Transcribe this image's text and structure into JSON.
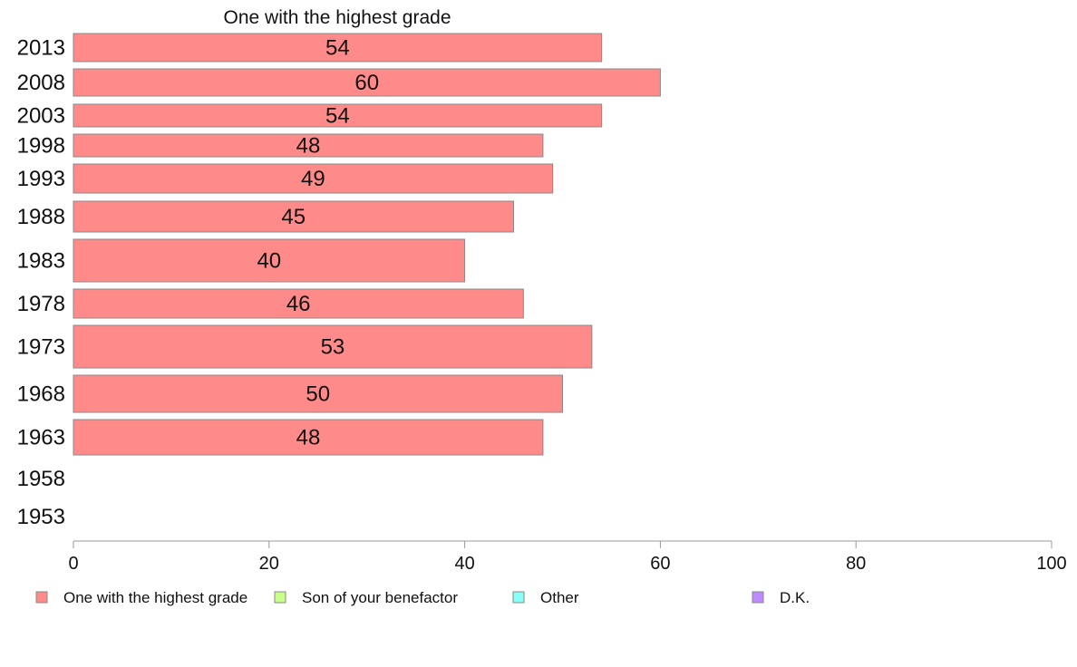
{
  "chart_data": {
    "type": "bar",
    "orientation": "horizontal",
    "stacked": true,
    "title": "One with the highest grade",
    "categories": [
      "2013",
      "2008",
      "2003",
      "1998",
      "1993",
      "1988",
      "1983",
      "1978",
      "1973",
      "1968",
      "1963",
      "1958",
      "1953"
    ],
    "series": [
      {
        "name": "One with the highest grade",
        "color": "#FF8A8A",
        "values": [
          54,
          60,
          54,
          48,
          49,
          45,
          40,
          46,
          53,
          50,
          48,
          null,
          null
        ],
        "labels": [
          "54",
          "60",
          "54",
          "48",
          "49",
          "45",
          "40",
          "46",
          "53",
          "50",
          "48",
          "",
          ""
        ]
      },
      {
        "name": "Son of your benefactor",
        "color": "#C8FF8A",
        "values": [
          null,
          null,
          null,
          null,
          null,
          null,
          null,
          null,
          null,
          null,
          null,
          null,
          null
        ]
      },
      {
        "name": "Other",
        "color": "#8AFFF8",
        "values": [
          null,
          null,
          null,
          null,
          null,
          null,
          null,
          null,
          null,
          null,
          null,
          null,
          null
        ]
      },
      {
        "name": "D.K.",
        "color": "#C08AFF",
        "values": [
          null,
          null,
          null,
          null,
          null,
          null,
          null,
          null,
          null,
          null,
          null,
          null,
          null
        ]
      }
    ],
    "xlim": [
      0,
      100
    ],
    "xticks": [
      "0",
      "20",
      "40",
      "60",
      "80",
      "100"
    ],
    "grid": false,
    "legend": "bottom"
  }
}
